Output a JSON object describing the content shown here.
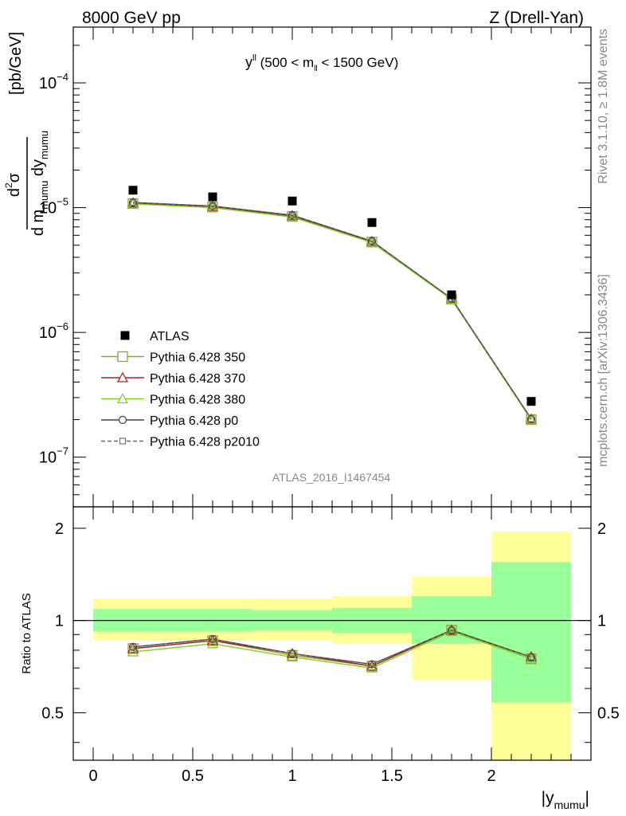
{
  "header": {
    "left": "8000 GeV pp",
    "right": "Z (Drell-Yan)"
  },
  "plot_title": {
    "main": "y",
    "sup": "ll",
    "rest_a": " (500 < m",
    "sub": "ll",
    "rest_b": " < 1500 GeV)"
  },
  "side_labels": {
    "rivet": "Rivet 3.1.10, ≥ 1.8M events",
    "mcplots": "mcplots.cern.ch [arXiv:1306.3436]"
  },
  "watermark": "ATLAS_2016_I1467454",
  "y_axis_label": {
    "num_d": "d",
    "num_sup": "2",
    "num_sigma": "σ",
    "den_a": "d m",
    "den_sub_a": "mumu",
    "den_b": " dy",
    "den_sub_b": "mumu",
    "unit": "[pb/GeV]"
  },
  "ratio_y_label": "Ratio to ATLAS",
  "x_axis_label": {
    "main": "|y",
    "sub": "mumu",
    "end": "|"
  },
  "upper_ticks": [
    {
      "base": "10",
      "exp": "−4",
      "value": 0.0001
    },
    {
      "base": "10",
      "exp": "−5",
      "value": 1e-05
    },
    {
      "base": "10",
      "exp": "−6",
      "value": 1e-06
    },
    {
      "base": "10",
      "exp": "−7",
      "value": 1e-07
    }
  ],
  "ratio_ticks": [
    {
      "label": "2",
      "value": 2
    },
    {
      "label": "1",
      "value": 1
    },
    {
      "label": "0.5",
      "value": 0.5
    }
  ],
  "x_ticks": [
    {
      "label": "0",
      "value": 0
    },
    {
      "label": "0.5",
      "value": 0.5
    },
    {
      "label": "1",
      "value": 1
    },
    {
      "label": "1.5",
      "value": 1.5
    },
    {
      "label": "2",
      "value": 2
    }
  ],
  "chart_data": {
    "type": "line",
    "xlim": [
      -0.1,
      2.5
    ],
    "ylim": [
      4e-08,
      0.00028
    ],
    "ylog": true,
    "ratio_ylim": [
      0.35,
      2.35
    ],
    "ratio_ylog": true,
    "x": [
      0.2,
      0.6,
      1.0,
      1.4,
      1.8,
      2.2
    ],
    "bins": [
      [
        0.0,
        0.4
      ],
      [
        0.4,
        0.8
      ],
      [
        0.8,
        1.2
      ],
      [
        1.2,
        1.6
      ],
      [
        1.6,
        2.0
      ],
      [
        2.0,
        2.4
      ]
    ],
    "data": {
      "name": "ATLAS",
      "values": [
        1.38e-05,
        1.22e-05,
        1.13e-05,
        7.6e-06,
        2e-06,
        2.8e-07
      ],
      "band_stat": [
        [
          0.92,
          1.09
        ],
        [
          0.92,
          1.09
        ],
        [
          0.93,
          1.08
        ],
        [
          0.91,
          1.1
        ],
        [
          0.84,
          1.2
        ],
        [
          0.54,
          1.55
        ]
      ],
      "band_total": [
        [
          0.86,
          1.18
        ],
        [
          0.86,
          1.18
        ],
        [
          0.86,
          1.18
        ],
        [
          0.84,
          1.2
        ],
        [
          0.64,
          1.39
        ],
        [
          0.35,
          1.95
        ]
      ]
    },
    "series": [
      {
        "name": "Pythia 6.428 350",
        "color": "#a09a2e",
        "marker": "square-open",
        "dash": "solid",
        "values": [
          1.08e-05,
          1.01e-05,
          8.5e-06,
          5.3e-06,
          1.85e-06,
          2e-07
        ],
        "ratio": [
          0.81,
          0.86,
          0.77,
          0.71,
          0.93,
          0.75
        ]
      },
      {
        "name": "Pythia 6.428 370",
        "color": "#a0262e",
        "marker": "triangle-open",
        "dash": "solid",
        "values": [
          1.09e-05,
          1.02e-05,
          8.6e-06,
          5.35e-06,
          1.86e-06,
          2.02e-07
        ],
        "ratio": [
          0.81,
          0.86,
          0.78,
          0.71,
          0.93,
          0.76
        ]
      },
      {
        "name": "Pythia 6.428 380",
        "color": "#80d020",
        "marker": "triangle-open",
        "dash": "solid",
        "values": [
          1.07e-05,
          1e-05,
          8.4e-06,
          5.25e-06,
          1.84e-06,
          1.99e-07
        ],
        "ratio": [
          0.79,
          0.84,
          0.76,
          0.7,
          0.92,
          0.75
        ]
      },
      {
        "name": "Pythia 6.428 p0",
        "color": "#404040",
        "marker": "circle-open",
        "dash": "solid",
        "values": [
          1.1e-05,
          1.03e-05,
          8.7e-06,
          5.4e-06,
          1.87e-06,
          2.03e-07
        ],
        "ratio": [
          0.82,
          0.87,
          0.78,
          0.72,
          0.93,
          0.76
        ]
      },
      {
        "name": "Pythia 6.428 p2010",
        "color": "#666666",
        "marker": "square-small-open",
        "dash": "dashed",
        "values": [
          1.1e-05,
          1.03e-05,
          8.7e-06,
          5.4e-06,
          1.87e-06,
          2.03e-07
        ],
        "ratio": [
          0.82,
          0.87,
          0.78,
          0.72,
          0.93,
          0.76
        ]
      }
    ],
    "colors": {
      "band_stat": "#99ff99",
      "band_total": "#ffff99"
    },
    "legend_placement": "lower-left"
  }
}
